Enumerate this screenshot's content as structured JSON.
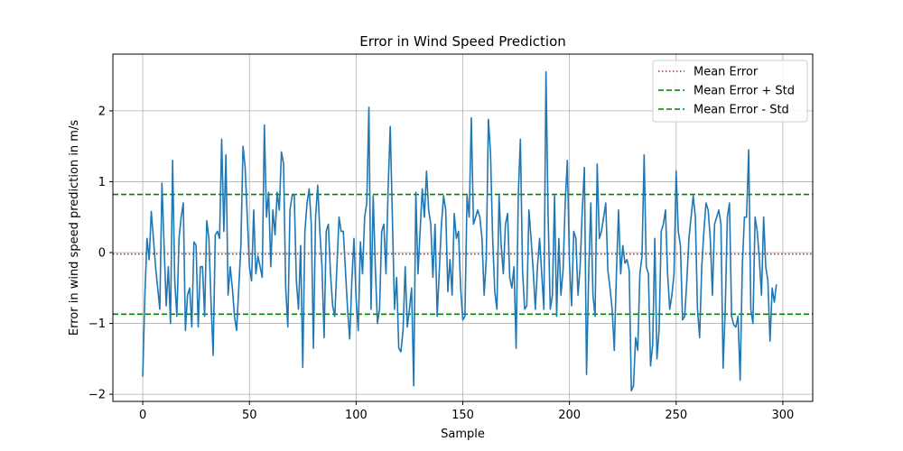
{
  "chart_data": {
    "type": "line",
    "title": "Error in Wind Speed Prediction",
    "xlabel": "Sample",
    "ylabel": "Error in wind speed prediction in m/s",
    "xlim": [
      -14,
      314
    ],
    "ylim": [
      -2.1,
      2.8
    ],
    "xticks": [
      0,
      50,
      100,
      150,
      200,
      250,
      300
    ],
    "yticks": [
      -2,
      -1,
      0,
      1,
      2
    ],
    "grid": true,
    "legend_position": "top-right",
    "colors": {
      "series": "#1f77b4",
      "mean": "#d62728",
      "std": "#008000"
    },
    "reference_lines": [
      {
        "name": "Mean Error",
        "y": -0.02,
        "style": "dotted",
        "color": "#d62728"
      },
      {
        "name": "Mean Error + Std",
        "y": 0.82,
        "style": "dashed",
        "color": "#008000"
      },
      {
        "name": "Mean Error - Std",
        "y": -0.87,
        "style": "dashed",
        "color": "#008000"
      }
    ],
    "series": [
      {
        "values": [
          -1.75,
          -0.6,
          0.2,
          -0.1,
          0.58,
          0.2,
          -0.2,
          -0.5,
          -0.8,
          0.98,
          0.1,
          -0.75,
          -0.2,
          -1.0,
          1.3,
          -0.4,
          -0.9,
          0.2,
          0.5,
          0.7,
          -1.1,
          -0.6,
          -0.5,
          -1.05,
          0.15,
          0.1,
          -1.05,
          -0.2,
          -0.2,
          -0.9,
          0.45,
          0.2,
          -0.7,
          -1.45,
          0.25,
          0.3,
          0.2,
          1.6,
          0.3,
          1.38,
          -0.6,
          -0.2,
          -0.5,
          -0.9,
          -1.1,
          -0.5,
          0.1,
          1.5,
          1.2,
          0.5,
          -0.2,
          -0.4,
          0.6,
          -0.3,
          -0.05,
          -0.2,
          -0.35,
          1.8,
          0.5,
          0.85,
          -0.2,
          0.6,
          0.25,
          0.85,
          0.6,
          1.42,
          1.25,
          -0.5,
          -1.05,
          0.6,
          0.8,
          0.82,
          -0.4,
          -0.8,
          0.1,
          -1.62,
          0.3,
          0.7,
          0.9,
          0.4,
          -1.35,
          0.5,
          0.95,
          0.3,
          -0.2,
          -1.2,
          0.3,
          0.4,
          -0.3,
          -0.75,
          -0.9,
          -0.2,
          0.5,
          0.3,
          0.3,
          -0.25,
          -0.8,
          -1.22,
          -0.4,
          0.2,
          -0.65,
          -1.1,
          0.15,
          -0.3,
          0.5,
          0.7,
          2.05,
          -0.8,
          0.8,
          -0.2,
          -1.0,
          -0.8,
          0.3,
          0.4,
          -0.3,
          0.9,
          1.78,
          0.5,
          -0.8,
          -0.35,
          -1.35,
          -1.4,
          -1.1,
          -0.2,
          -1.05,
          -0.8,
          -0.5,
          -1.88,
          0.85,
          -0.3,
          0.3,
          0.9,
          0.5,
          1.15,
          0.6,
          0.4,
          -0.35,
          0.4,
          -0.9,
          -0.25,
          0.4,
          0.8,
          0.6,
          -0.55,
          -0.1,
          -0.6,
          0.55,
          0.2,
          0.3,
          -0.5,
          -0.95,
          -0.9,
          0.8,
          0.5,
          1.9,
          0.4,
          0.5,
          0.6,
          0.5,
          0.2,
          -0.6,
          -0.1,
          1.88,
          1.4,
          0.2,
          -0.55,
          -0.8,
          0.8,
          0.1,
          -0.3,
          0.4,
          0.55,
          -0.35,
          -0.5,
          -0.2,
          -1.35,
          0.8,
          1.6,
          -0.25,
          -0.8,
          -0.75,
          0.6,
          0.2,
          -0.25,
          -0.8,
          -0.2,
          0.2,
          -0.3,
          -0.8,
          2.55,
          0.5,
          -0.8,
          -0.6,
          0.8,
          -0.9,
          0.2,
          -0.6,
          -0.25,
          0.7,
          1.3,
          -0.15,
          -0.75,
          0.3,
          0.2,
          -0.6,
          -0.2,
          0.6,
          1.2,
          -1.72,
          -0.3,
          0.7,
          -0.6,
          -0.9,
          1.25,
          0.2,
          0.3,
          0.5,
          0.7,
          -0.25,
          -0.5,
          -0.8,
          -1.38,
          -0.3,
          0.6,
          -0.3,
          0.1,
          -0.15,
          -0.1,
          -0.25,
          -1.95,
          -1.88,
          -1.2,
          -1.38,
          -0.3,
          -0.05,
          1.38,
          -0.2,
          -0.3,
          -1.6,
          -1.3,
          0.2,
          -1.5,
          -1.1,
          0.3,
          0.4,
          0.6,
          -0.3,
          -0.8,
          -0.6,
          -0.3,
          1.15,
          0.3,
          0.1,
          -0.95,
          -0.9,
          -0.4,
          0.2,
          0.5,
          0.8,
          0.5,
          -0.8,
          -1.2,
          -0.2,
          0.3,
          0.7,
          0.6,
          0.2,
          -0.6,
          0.4,
          0.5,
          0.6,
          0.4,
          -1.63,
          -0.8,
          0.5,
          0.7,
          -0.9,
          -1.02,
          -1.05,
          -0.9,
          -1.8,
          -0.2,
          0.5,
          0.5,
          1.45,
          -0.8,
          -1.0,
          0.5,
          0.3,
          -0.1,
          -0.6,
          0.5,
          -0.2,
          -0.4,
          -1.25,
          -0.5,
          -0.7,
          -0.45
        ]
      }
    ]
  }
}
